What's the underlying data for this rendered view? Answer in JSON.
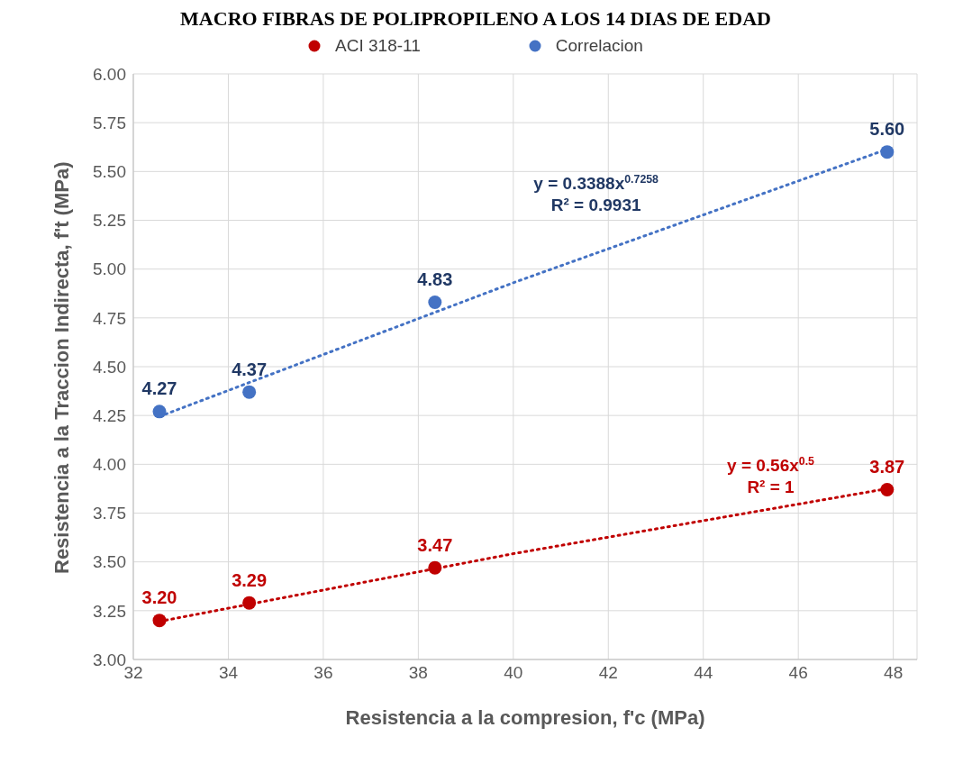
{
  "chart_data": {
    "type": "scatter",
    "title": "MACRO FIBRAS DE POLIPROPILENO A LOS 14 DIAS DE EDAD",
    "xlabel": "Resistencia a la compresion, f'c (MPa)",
    "ylabel": "Resistencia a la Traccion Indirecta, f't (MPa)",
    "xlim": [
      32,
      48.5
    ],
    "xticks": [
      32,
      34,
      36,
      38,
      40,
      42,
      44,
      46,
      48
    ],
    "ylim": [
      3,
      6
    ],
    "yticks": [
      {
        "value": 3,
        "label": "3.00"
      },
      {
        "value": 3.25,
        "label": "3.25"
      },
      {
        "value": 3.5,
        "label": "3.50"
      },
      {
        "value": 3.75,
        "label": "3.75"
      },
      {
        "value": 4,
        "label": "4.00"
      },
      {
        "value": 4.25,
        "label": "4.25"
      },
      {
        "value": 4.5,
        "label": "4.50"
      },
      {
        "value": 4.75,
        "label": "4.75"
      },
      {
        "value": 5,
        "label": "5.00"
      },
      {
        "value": 5.25,
        "label": "5.25"
      },
      {
        "value": 5.5,
        "label": "5.50"
      },
      {
        "value": 5.75,
        "label": "5.75"
      },
      {
        "value": 6,
        "label": "6.00"
      }
    ],
    "grid": true,
    "legend": "top",
    "marker": "circle",
    "x": [
      32.55,
      34.44,
      38.35,
      47.87
    ],
    "series": [
      {
        "name": "ACI 318-11",
        "color": "#c00000",
        "values": [
          3.2,
          3.29,
          3.47,
          3.87
        ],
        "value_labels": [
          "3.20",
          "3.29",
          "3.47",
          "3.87"
        ]
      },
      {
        "name": "Correlacion",
        "color": "#4472c4",
        "values": [
          4.27,
          4.37,
          4.83,
          5.6
        ],
        "value_labels": [
          "4.27",
          "4.37",
          "4.83",
          "5.60"
        ]
      },
      {
        "type": "line",
        "color": "#c00000",
        "line_style": "dotted",
        "marker": "none",
        "x": [
          32.55,
          40,
          47.87
        ],
        "values": [
          3.195,
          3.542,
          3.875
        ]
      },
      {
        "type": "line",
        "color": "#4472c4",
        "line_style": "dotted",
        "marker": "none",
        "x": [
          32.55,
          40,
          47.87
        ],
        "values": [
          4.245,
          4.93,
          5.614
        ]
      }
    ],
    "annotations": [
      "y = 0.3388x$^{0.7258}$",
      "R² = 0.9931",
      "y = 0.56x$^{0.5}$",
      "R² = 1"
    ]
  }
}
